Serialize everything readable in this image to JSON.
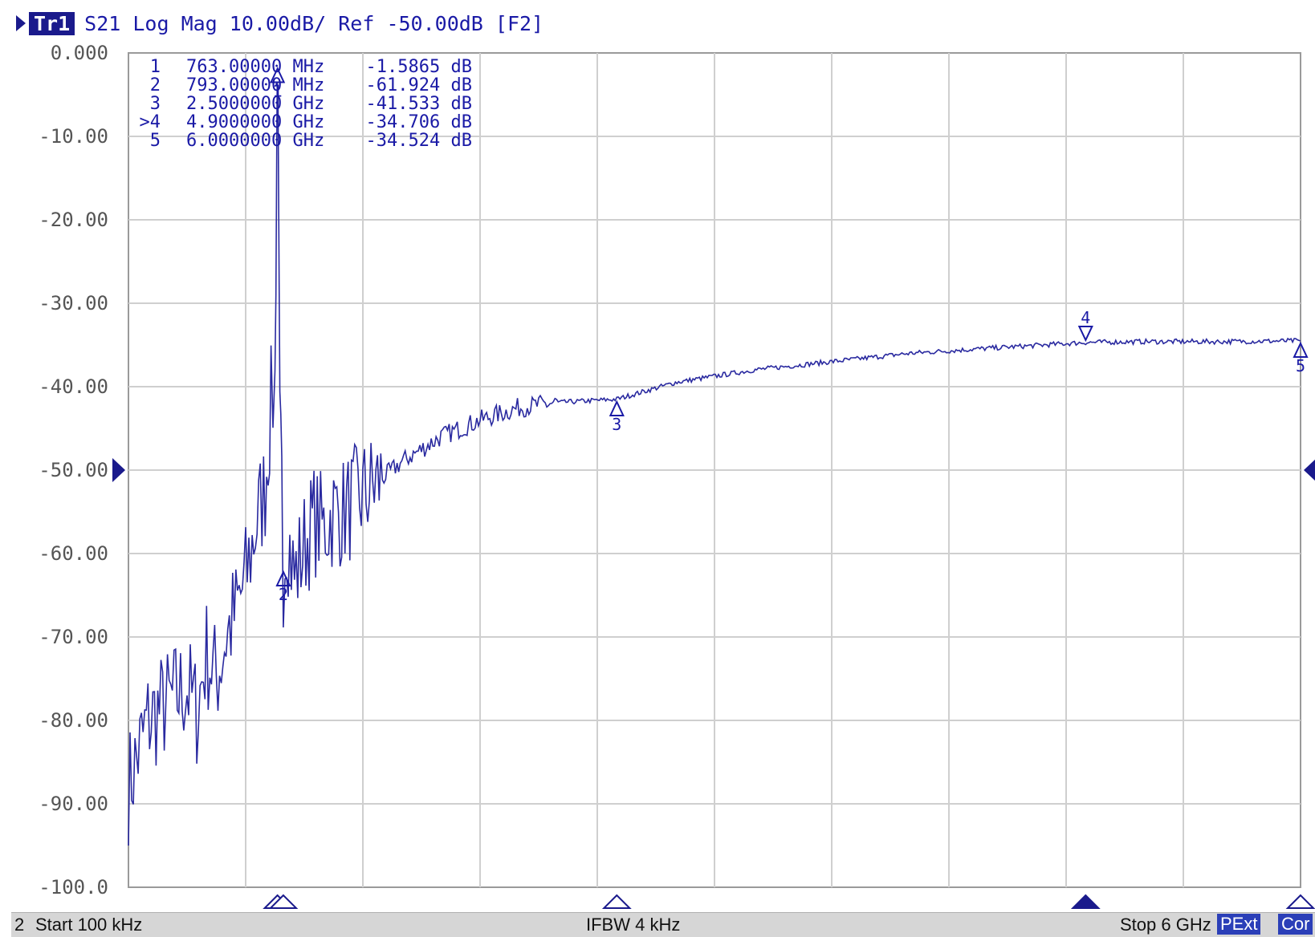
{
  "header": {
    "trace_badge": "Tr1",
    "trace_info": "S21 Log Mag 10.00dB/ Ref -50.00dB [F2]"
  },
  "markers": [
    {
      "id": "1",
      "label": "1",
      "freq": "763.00000 MHz",
      "value": "-1.5865 dB",
      "active": false
    },
    {
      "id": "2",
      "label": "2",
      "freq": "793.00000 MHz",
      "value": "-61.924 dB",
      "active": false
    },
    {
      "id": "3",
      "label": "3",
      "freq": "2.5000000 GHz",
      "value": "-41.533 dB",
      "active": false
    },
    {
      "id": "4",
      "label": ">4",
      "freq": "4.9000000 GHz",
      "value": "-34.706 dB",
      "active": true
    },
    {
      "id": "5",
      "label": "5",
      "freq": "6.0000000 GHz",
      "value": "-34.524 dB",
      "active": false
    }
  ],
  "status_bar": {
    "channel": "2",
    "start": "Start 100 kHz",
    "ifbw": "IFBW 4 kHz",
    "stop": "Stop 6 GHz",
    "pext": "PExt",
    "cor": "Cor"
  },
  "colors": {
    "trace": "#2a2aa0",
    "marker_text": "#1a1aa6",
    "grid": "#cfcfcf",
    "reference": "#1a1a8c"
  },
  "chart_data": {
    "type": "line",
    "ylim": [
      -100,
      0
    ],
    "xlim_ghz": [
      0.0001,
      6
    ],
    "x_divisions": 10,
    "y_tick_labels": [
      "0.000",
      "-10.00",
      "-20.00",
      "-30.00",
      "-40.00",
      "-50.00",
      "-60.00",
      "-70.00",
      "-80.00",
      "-90.00",
      "-100.0"
    ],
    "reference_level": -50,
    "grid": true,
    "series": [
      {
        "x_ghz": [
          0.0001,
          0.05,
          0.1,
          0.15,
          0.2,
          0.25,
          0.3,
          0.35,
          0.4,
          0.45,
          0.5,
          0.55,
          0.6,
          0.65,
          0.7,
          0.73,
          0.75,
          0.76,
          0.763,
          0.768,
          0.775,
          0.785,
          0.793,
          0.81,
          0.85,
          0.9,
          0.95,
          1.0,
          1.05,
          1.1,
          1.15,
          1.2,
          1.3,
          1.4,
          1.5,
          1.6,
          1.8,
          2.0,
          2.2,
          2.5,
          2.8,
          3.2,
          3.6,
          4.0,
          4.4,
          4.9,
          5.2,
          5.6,
          6.0
        ],
        "y_db": [
          -88,
          -84,
          -80,
          -79,
          -78,
          -77,
          -76,
          -79,
          -72,
          -75,
          -70,
          -67,
          -63,
          -57,
          -52,
          -42,
          -40,
          -8,
          -1.6,
          -20,
          -46,
          -52,
          -62,
          -57,
          -63,
          -59,
          -56,
          -57,
          -55,
          -55,
          -54,
          -53,
          -51,
          -49,
          -47.5,
          -46,
          -44,
          -42.5,
          -41.9,
          -41.5,
          -39.5,
          -38,
          -37,
          -36,
          -35.4,
          -34.7,
          -34.6,
          -34.6,
          -34.5
        ]
      }
    ],
    "marker_positions": [
      {
        "id": "1",
        "x_ghz": 0.763,
        "y_db": -1.5865
      },
      {
        "id": "2",
        "x_ghz": 0.793,
        "y_db": -61.924
      },
      {
        "id": "3",
        "x_ghz": 2.5,
        "y_db": -41.533
      },
      {
        "id": "4",
        "x_ghz": 4.9,
        "y_db": -34.706
      },
      {
        "id": "5",
        "x_ghz": 6.0,
        "y_db": -34.524
      }
    ]
  }
}
